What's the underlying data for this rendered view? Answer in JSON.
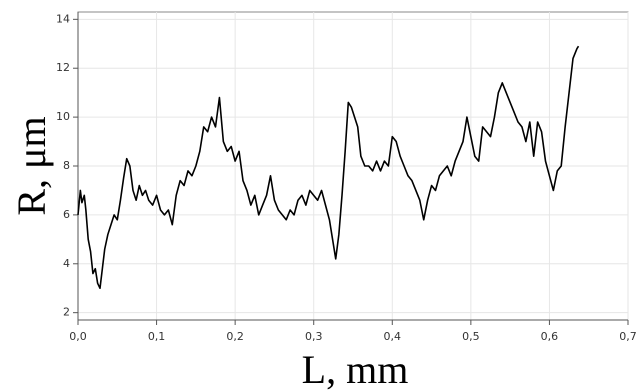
{
  "chart_data": {
    "type": "line",
    "xlabel": "L, mm",
    "ylabel": "R, μm",
    "color": "#000000",
    "grid": true,
    "xlim": [
      0,
      0.7
    ],
    "ylim": [
      1.7,
      14.3
    ],
    "xticks": [
      {
        "value": 0,
        "label": "0,0"
      },
      {
        "value": 0.1,
        "label": "0,1"
      },
      {
        "value": 0.2,
        "label": "0,2"
      },
      {
        "value": 0.3,
        "label": "0,3"
      },
      {
        "value": 0.4,
        "label": "0,4"
      },
      {
        "value": 0.5,
        "label": "0,5"
      },
      {
        "value": 0.6,
        "label": "0,6"
      },
      {
        "value": 0.7,
        "label": "0,7"
      }
    ],
    "yticks": [
      2,
      4,
      6,
      8,
      10,
      12,
      14
    ],
    "x": [
      0.0,
      0.003,
      0.005,
      0.008,
      0.01,
      0.013,
      0.016,
      0.019,
      0.022,
      0.025,
      0.028,
      0.031,
      0.034,
      0.038,
      0.042,
      0.046,
      0.05,
      0.054,
      0.058,
      0.062,
      0.066,
      0.07,
      0.074,
      0.078,
      0.082,
      0.086,
      0.09,
      0.095,
      0.1,
      0.105,
      0.11,
      0.115,
      0.12,
      0.125,
      0.13,
      0.135,
      0.14,
      0.145,
      0.15,
      0.155,
      0.16,
      0.165,
      0.17,
      0.175,
      0.18,
      0.185,
      0.19,
      0.195,
      0.2,
      0.205,
      0.21,
      0.215,
      0.22,
      0.225,
      0.23,
      0.235,
      0.24,
      0.245,
      0.25,
      0.255,
      0.26,
      0.265,
      0.27,
      0.275,
      0.28,
      0.285,
      0.29,
      0.295,
      0.3,
      0.305,
      0.31,
      0.315,
      0.32,
      0.325,
      0.328,
      0.332,
      0.336,
      0.34,
      0.344,
      0.348,
      0.352,
      0.356,
      0.36,
      0.365,
      0.37,
      0.375,
      0.38,
      0.385,
      0.39,
      0.395,
      0.4,
      0.405,
      0.41,
      0.415,
      0.42,
      0.425,
      0.43,
      0.435,
      0.44,
      0.445,
      0.45,
      0.455,
      0.46,
      0.465,
      0.47,
      0.475,
      0.48,
      0.485,
      0.49,
      0.495,
      0.5,
      0.505,
      0.51,
      0.515,
      0.52,
      0.525,
      0.53,
      0.535,
      0.54,
      0.545,
      0.55,
      0.555,
      0.56,
      0.565,
      0.57,
      0.575,
      0.58,
      0.585,
      0.59,
      0.595,
      0.6,
      0.605,
      0.61,
      0.615,
      0.62,
      0.625,
      0.63,
      0.635,
      0.637
    ],
    "values": [
      6.0,
      7.0,
      6.5,
      6.8,
      6.2,
      5.0,
      4.5,
      3.6,
      3.8,
      3.2,
      3.0,
      3.8,
      4.6,
      5.2,
      5.6,
      6.0,
      5.8,
      6.6,
      7.5,
      8.3,
      8.0,
      7.0,
      6.6,
      7.2,
      6.8,
      7.0,
      6.6,
      6.4,
      6.8,
      6.2,
      6.0,
      6.2,
      5.6,
      6.8,
      7.4,
      7.2,
      7.8,
      7.6,
      8.0,
      8.6,
      9.6,
      9.4,
      10.0,
      9.6,
      10.8,
      9.0,
      8.6,
      8.8,
      8.2,
      8.6,
      7.4,
      7.0,
      6.4,
      6.8,
      6.0,
      6.4,
      6.8,
      7.6,
      6.6,
      6.2,
      6.0,
      5.8,
      6.2,
      6.0,
      6.6,
      6.8,
      6.4,
      7.0,
      6.8,
      6.6,
      7.0,
      6.4,
      5.8,
      4.8,
      4.2,
      5.2,
      6.8,
      8.6,
      10.6,
      10.4,
      10.0,
      9.6,
      8.4,
      8.0,
      8.0,
      7.8,
      8.2,
      7.8,
      8.2,
      8.0,
      9.2,
      9.0,
      8.4,
      8.0,
      7.6,
      7.4,
      7.0,
      6.6,
      5.8,
      6.6,
      7.2,
      7.0,
      7.6,
      7.8,
      8.0,
      7.6,
      8.2,
      8.6,
      9.0,
      10.0,
      9.2,
      8.4,
      8.2,
      9.6,
      9.4,
      9.2,
      10.0,
      11.0,
      11.4,
      11.0,
      10.6,
      10.2,
      9.8,
      9.6,
      9.0,
      9.8,
      8.4,
      9.8,
      9.4,
      8.2,
      7.6,
      7.0,
      7.8,
      8.0,
      9.6,
      11.0,
      12.4,
      12.8,
      12.9
    ]
  }
}
